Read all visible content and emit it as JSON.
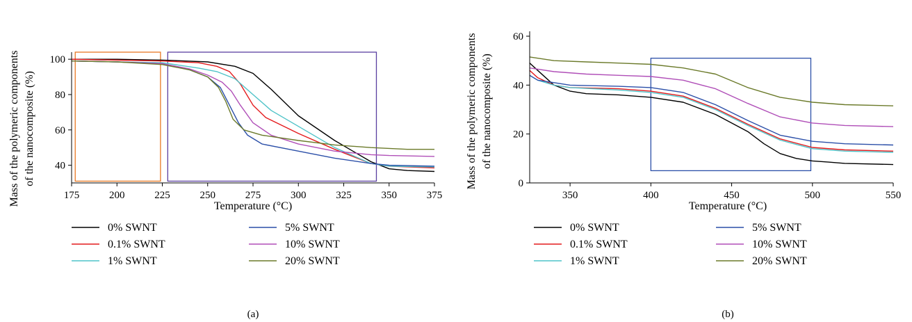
{
  "chart_data": [
    {
      "type": "line",
      "caption": "(a)",
      "xlabel": "Temperature (°C)",
      "ylabel_lines": [
        "Mass of the polymeric components",
        "of the nanocomposite (%)"
      ],
      "xlim": [
        175,
        375
      ],
      "ylim": [
        30,
        104
      ],
      "xticks": [
        175,
        200,
        225,
        250,
        275,
        300,
        325,
        350,
        375
      ],
      "yticks": [
        40,
        60,
        80,
        100
      ],
      "grid": false,
      "legend_position": "bottom",
      "highlight_boxes": [
        {
          "x": [
            177,
            224
          ],
          "y": [
            31,
            104
          ],
          "color": "#e87722"
        },
        {
          "x": [
            228,
            343
          ],
          "y": [
            31,
            104
          ],
          "color": "#5a3fa0"
        }
      ],
      "series": [
        {
          "name": "0% SWNT",
          "color": "#000000",
          "x": [
            175,
            200,
            225,
            250,
            265,
            275,
            285,
            300,
            320,
            340,
            350,
            360,
            375
          ],
          "y": [
            100,
            100,
            99.5,
            98.5,
            96,
            92,
            83,
            68,
            54,
            42,
            38,
            37,
            36.5
          ]
        },
        {
          "name": "0.1% SWNT",
          "color": "#e41a1c",
          "x": [
            175,
            200,
            225,
            245,
            255,
            262,
            268,
            275,
            282,
            300,
            320,
            340,
            350,
            375
          ],
          "y": [
            100,
            99.5,
            99,
            98,
            96,
            93,
            86,
            74,
            67,
            58,
            49,
            41,
            39.5,
            38.5
          ]
        },
        {
          "name": "1% SWNT",
          "color": "#4fc3c8",
          "x": [
            175,
            200,
            225,
            245,
            255,
            265,
            275,
            285,
            300,
            320,
            340,
            350,
            375
          ],
          "y": [
            99,
            98.5,
            98,
            95,
            93,
            89,
            80,
            71,
            62,
            50,
            41,
            39.5,
            39
          ]
        },
        {
          "name": "5% SWNT",
          "color": "#2b4fa8",
          "x": [
            175,
            200,
            225,
            240,
            250,
            257,
            262,
            267,
            272,
            280,
            300,
            320,
            340,
            350,
            375
          ],
          "y": [
            99,
            98.5,
            97.5,
            94,
            90,
            84,
            74,
            64,
            57,
            52,
            48,
            44,
            41,
            40,
            39.5
          ]
        },
        {
          "name": "10% SWNT",
          "color": "#b04fb8",
          "x": [
            175,
            200,
            225,
            240,
            250,
            258,
            263,
            268,
            275,
            285,
            300,
            320,
            340,
            350,
            375
          ],
          "y": [
            99,
            98.5,
            97.5,
            94.5,
            91,
            87,
            82,
            74,
            64,
            57,
            52,
            48,
            46,
            45.5,
            45
          ]
        },
        {
          "name": "20% SWNT",
          "color": "#6b7a2a",
          "x": [
            175,
            200,
            225,
            240,
            250,
            256,
            260,
            264,
            270,
            280,
            300,
            320,
            340,
            360,
            375
          ],
          "y": [
            99,
            98.5,
            97,
            94,
            90,
            84,
            76,
            66,
            60,
            57,
            54,
            51.5,
            50,
            49,
            49
          ]
        }
      ]
    },
    {
      "type": "line",
      "caption": "(b)",
      "xlabel": "Temperature (°C)",
      "ylabel_lines": [
        "Mass of the polymeric components",
        "of the nanocomposite (%)"
      ],
      "xlim": [
        325,
        550
      ],
      "ylim": [
        0,
        62
      ],
      "xticks": [
        350,
        400,
        450,
        500,
        550
      ],
      "yticks": [
        0,
        20,
        40,
        60
      ],
      "grid": false,
      "legend_position": "bottom",
      "highlight_boxes": [
        {
          "x": [
            400,
            499
          ],
          "y": [
            5,
            51
          ],
          "color": "#2b4fa8"
        }
      ],
      "series": [
        {
          "name": "0% SWNT",
          "color": "#000000",
          "x": [
            325,
            330,
            335,
            340,
            350,
            360,
            380,
            400,
            420,
            440,
            460,
            470,
            480,
            490,
            500,
            510,
            520,
            550
          ],
          "y": [
            49,
            46,
            43,
            40,
            37.5,
            36.5,
            36,
            35,
            33,
            28,
            21,
            16,
            12,
            10,
            9,
            8.5,
            8,
            7.5
          ]
        },
        {
          "name": "0.1% SWNT",
          "color": "#e41a1c",
          "x": [
            325,
            330,
            340,
            350,
            380,
            400,
            420,
            440,
            460,
            480,
            500,
            520,
            550
          ],
          "y": [
            46,
            43,
            40,
            39,
            38.5,
            37.5,
            35.5,
            30.5,
            24,
            18,
            14.5,
            13.5,
            13
          ]
        },
        {
          "name": "1% SWNT",
          "color": "#4fc3c8",
          "x": [
            325,
            330,
            340,
            350,
            380,
            400,
            420,
            440,
            460,
            480,
            500,
            520,
            550
          ],
          "y": [
            44,
            42,
            40,
            39,
            38,
            37,
            35,
            30,
            23.5,
            17.5,
            14,
            13,
            12.5
          ]
        },
        {
          "name": "5% SWNT",
          "color": "#2b4fa8",
          "x": [
            325,
            330,
            340,
            350,
            380,
            400,
            420,
            440,
            460,
            480,
            500,
            520,
            550
          ],
          "y": [
            44,
            42,
            41,
            40,
            39.5,
            39,
            37,
            32,
            25.5,
            19.5,
            17,
            16,
            15.5
          ]
        },
        {
          "name": "10% SWNT",
          "color": "#b04fb8",
          "x": [
            325,
            340,
            360,
            380,
            400,
            420,
            440,
            460,
            480,
            500,
            520,
            550
          ],
          "y": [
            47,
            45.5,
            44.5,
            44,
            43.5,
            42,
            38.5,
            32.5,
            27,
            24.5,
            23.5,
            23
          ]
        },
        {
          "name": "20% SWNT",
          "color": "#6b7a2a",
          "x": [
            325,
            340,
            360,
            380,
            400,
            420,
            440,
            460,
            480,
            500,
            520,
            550
          ],
          "y": [
            51.5,
            50,
            49.5,
            49,
            48.5,
            47,
            44.5,
            39,
            35,
            33,
            32,
            31.5
          ]
        }
      ]
    }
  ]
}
